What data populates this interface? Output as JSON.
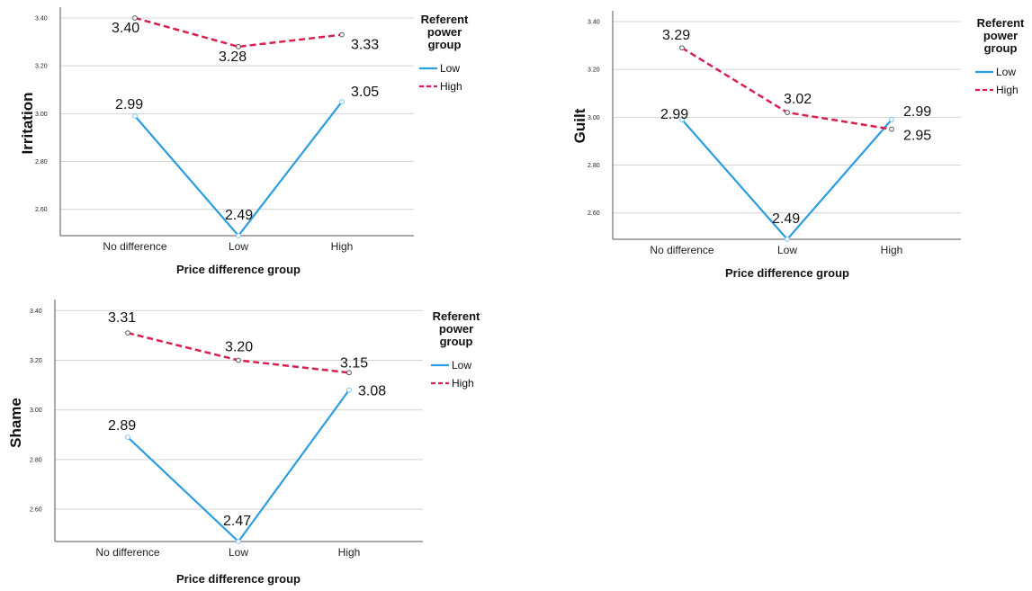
{
  "chart_data": [
    {
      "type": "line",
      "title": "",
      "xlabel": "Price difference group",
      "ylabel": "Irritation",
      "categories": [
        "No difference",
        "Low",
        "High"
      ],
      "yticks": [
        "2.60",
        "2.80",
        "3.00",
        "3.20",
        "3.40"
      ],
      "ylim": [
        2.49,
        3.43
      ],
      "legend_title": "Referent power group",
      "legend_title_lines": [
        "Referent",
        "power",
        "group"
      ],
      "legend_position": "right",
      "series": [
        {
          "name": "Low",
          "values": [
            2.99,
            2.49,
            3.05
          ],
          "labels": [
            "2.99",
            "2.49",
            "3.05"
          ],
          "color": "#2b9de0",
          "dash": "solid"
        },
        {
          "name": "High",
          "values": [
            3.4,
            3.28,
            3.33
          ],
          "labels": [
            "3.40",
            "3.28",
            "3.33"
          ],
          "color": "#d6204f",
          "dash": "dashed"
        }
      ]
    },
    {
      "type": "line",
      "title": "",
      "xlabel": "Price difference group",
      "ylabel": "Guilt",
      "categories": [
        "No difference",
        "Low",
        "High"
      ],
      "yticks": [
        "2.60",
        "2.80",
        "3.00",
        "3.20",
        "3.40"
      ],
      "ylim": [
        2.49,
        3.43
      ],
      "legend_title": "Referent power group",
      "legend_title_lines": [
        "Referent",
        "power",
        "group"
      ],
      "legend_position": "right",
      "series": [
        {
          "name": "Low",
          "values": [
            2.99,
            2.49,
            2.99
          ],
          "labels": [
            "2.99",
            "2.49",
            "2.99"
          ],
          "color": "#2b9de0",
          "dash": "solid"
        },
        {
          "name": "High",
          "values": [
            3.29,
            3.02,
            2.95
          ],
          "labels": [
            "3.29",
            "3.02",
            "2.95"
          ],
          "color": "#d6204f",
          "dash": "dashed"
        }
      ]
    },
    {
      "type": "line",
      "title": "",
      "xlabel": "Price difference group",
      "ylabel": "Shame",
      "categories": [
        "No difference",
        "Low",
        "High"
      ],
      "yticks": [
        "2.60",
        "2.80",
        "3.00",
        "3.20",
        "3.40"
      ],
      "ylim": [
        2.47,
        3.43
      ],
      "legend_title": "Referent power group",
      "legend_title_lines": [
        "Referent",
        "power",
        "group"
      ],
      "legend_position": "right",
      "series": [
        {
          "name": "Low",
          "values": [
            2.89,
            2.47,
            3.08
          ],
          "labels": [
            "2.89",
            "2.47",
            "3.08"
          ],
          "color": "#2b9de0",
          "dash": "solid"
        },
        {
          "name": "High",
          "values": [
            3.31,
            3.2,
            3.15
          ],
          "labels": [
            "3.31",
            "3.20",
            "3.15"
          ],
          "color": "#d6204f",
          "dash": "dashed"
        }
      ]
    }
  ]
}
